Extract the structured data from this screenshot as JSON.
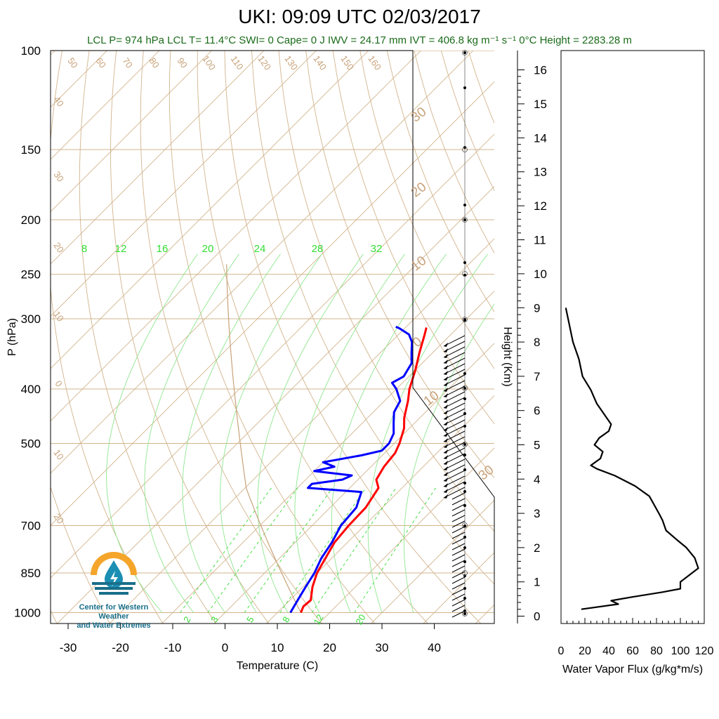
{
  "title": "UKI: 09:09 UTC 02/03/2017",
  "diagnostics": "LCL P= 974 hPa  LCL T= 11.4°C  SWI= 0  Cape= 0 J  IWV = 24.17 mm  IVT = 406.8 kg m⁻¹ s⁻¹  0°C Height = 2283.28 m",
  "logo": {
    "line1": "Center for Western Weather",
    "line2": "and Water Extremes"
  },
  "colors": {
    "temperature": "#ff0000",
    "dewpoint": "#0000ff",
    "mixing_ratio": "#33dd33",
    "adiabat": "#d2b48c",
    "flux": "#000000",
    "diag_text": "#1a6b1a"
  },
  "chart_data": [
    {
      "type": "line",
      "name": "skew-t",
      "xlabel": "Temperature (C)",
      "ylabel": "P (hPa)",
      "y_scale": "log",
      "ylim": [
        1000,
        100
      ],
      "xlim": [
        -33,
        52
      ],
      "x_ticks": [
        -30,
        -20,
        -10,
        0,
        10,
        20,
        30,
        40
      ],
      "y_ticks": [
        100,
        150,
        200,
        250,
        300,
        400,
        500,
        700,
        850,
        1000
      ],
      "height_axis": {
        "label": "Height (Km)",
        "ticks": [
          0,
          1,
          2,
          3,
          4,
          5,
          6,
          7,
          8,
          9,
          10,
          11,
          12,
          13,
          14,
          15,
          16
        ]
      },
      "mixing_ratio_labels_top": [
        "8",
        "12",
        "16",
        "20",
        "24",
        "28",
        "32"
      ],
      "mixing_ratio_labels_bottom": [
        "2",
        "3",
        "5",
        "8",
        "12",
        "20"
      ],
      "dry_adiabat_labels": [
        "50",
        "60",
        "70",
        "80",
        "90",
        "100",
        "110",
        "120",
        "130",
        "140",
        "150",
        "160"
      ],
      "isotherm_labels": [
        "40",
        "30",
        "20",
        "10",
        "0",
        "10",
        "20"
      ],
      "right_isotherm_labels": [
        "30",
        "20",
        "10",
        "0",
        "10",
        "30"
      ],
      "series": [
        {
          "name": "temperature",
          "color": "#ff0000",
          "points": [
            [
              14.5,
              1000
            ],
            [
              13.8,
              975
            ],
            [
              14.0,
              950
            ],
            [
              11.8,
              900
            ],
            [
              10.0,
              850
            ],
            [
              8.8,
              800
            ],
            [
              7.5,
              750
            ],
            [
              7.0,
              700
            ],
            [
              6.8,
              650
            ],
            [
              5.5,
              600
            ],
            [
              3.5,
              580
            ],
            [
              2.5,
              550
            ],
            [
              2.0,
              520
            ],
            [
              1.0,
              500
            ],
            [
              -1.0,
              470
            ],
            [
              -3.0,
              450
            ],
            [
              -5.5,
              420
            ],
            [
              -7.5,
              400
            ],
            [
              -10.0,
              370
            ],
            [
              -12.5,
              345
            ],
            [
              -15.0,
              320
            ],
            [
              -16.0,
              311
            ]
          ]
        },
        {
          "name": "dewpoint",
          "color": "#0000ff",
          "points": [
            [
              12.5,
              1000
            ],
            [
              12.0,
              975
            ],
            [
              11.5,
              950
            ],
            [
              10.5,
              900
            ],
            [
              9.5,
              850
            ],
            [
              8.0,
              800
            ],
            [
              7.0,
              750
            ],
            [
              5.5,
              700
            ],
            [
              5.0,
              650
            ],
            [
              3.0,
              610
            ],
            [
              -8.0,
              600
            ],
            [
              -8.0,
              590
            ],
            [
              -3.0,
              580
            ],
            [
              -2.0,
              570
            ],
            [
              -10.0,
              560
            ],
            [
              -7.0,
              550
            ],
            [
              -10.0,
              540
            ],
            [
              -4.0,
              525
            ],
            [
              -1.0,
              515
            ],
            [
              -1.0,
              500
            ],
            [
              -2.0,
              480
            ],
            [
              -4.0,
              460
            ],
            [
              -6.0,
              440
            ],
            [
              -7.0,
              420
            ],
            [
              -10.0,
              400
            ],
            [
              -12.0,
              390
            ],
            [
              -11.0,
              380
            ],
            [
              -12.0,
              360
            ],
            [
              -14.0,
              345
            ],
            [
              -16.0,
              330
            ],
            [
              -18.0,
              320
            ],
            [
              -21.0,
              312
            ],
            [
              -22.0,
              310
            ]
          ]
        }
      ]
    },
    {
      "type": "line",
      "name": "water-vapor-flux",
      "xlabel": "Water Vapor Flux (g/kg*m/s)",
      "ylabel": "",
      "xlim": [
        0,
        120
      ],
      "x_ticks": [
        0,
        20,
        40,
        60,
        80,
        100,
        120
      ],
      "ylim_km": [
        0,
        16.5
      ],
      "series": [
        {
          "name": "flux",
          "color": "#000000",
          "points_km": [
            [
              17,
              0.2
            ],
            [
              48,
              0.35
            ],
            [
              42,
              0.45
            ],
            [
              58,
              0.55
            ],
            [
              85,
              0.7
            ],
            [
              100,
              0.8
            ],
            [
              100,
              1.0
            ],
            [
              115,
              1.4
            ],
            [
              112,
              1.7
            ],
            [
              105,
              2.0
            ],
            [
              98,
              2.2
            ],
            [
              88,
              2.5
            ],
            [
              85,
              2.8
            ],
            [
              82,
              3.0
            ],
            [
              74,
              3.5
            ],
            [
              62,
              3.8
            ],
            [
              45,
              4.1
            ],
            [
              30,
              4.3
            ],
            [
              25,
              4.4
            ],
            [
              33,
              4.6
            ],
            [
              35,
              4.8
            ],
            [
              28,
              5.0
            ],
            [
              32,
              5.2
            ],
            [
              40,
              5.4
            ],
            [
              42,
              5.6
            ],
            [
              38,
              5.8
            ],
            [
              30,
              6.2
            ],
            [
              25,
              6.6
            ],
            [
              18,
              7.0
            ],
            [
              15,
              7.5
            ],
            [
              10,
              8.0
            ],
            [
              7,
              8.5
            ],
            [
              4,
              9.0
            ]
          ]
        }
      ]
    }
  ]
}
